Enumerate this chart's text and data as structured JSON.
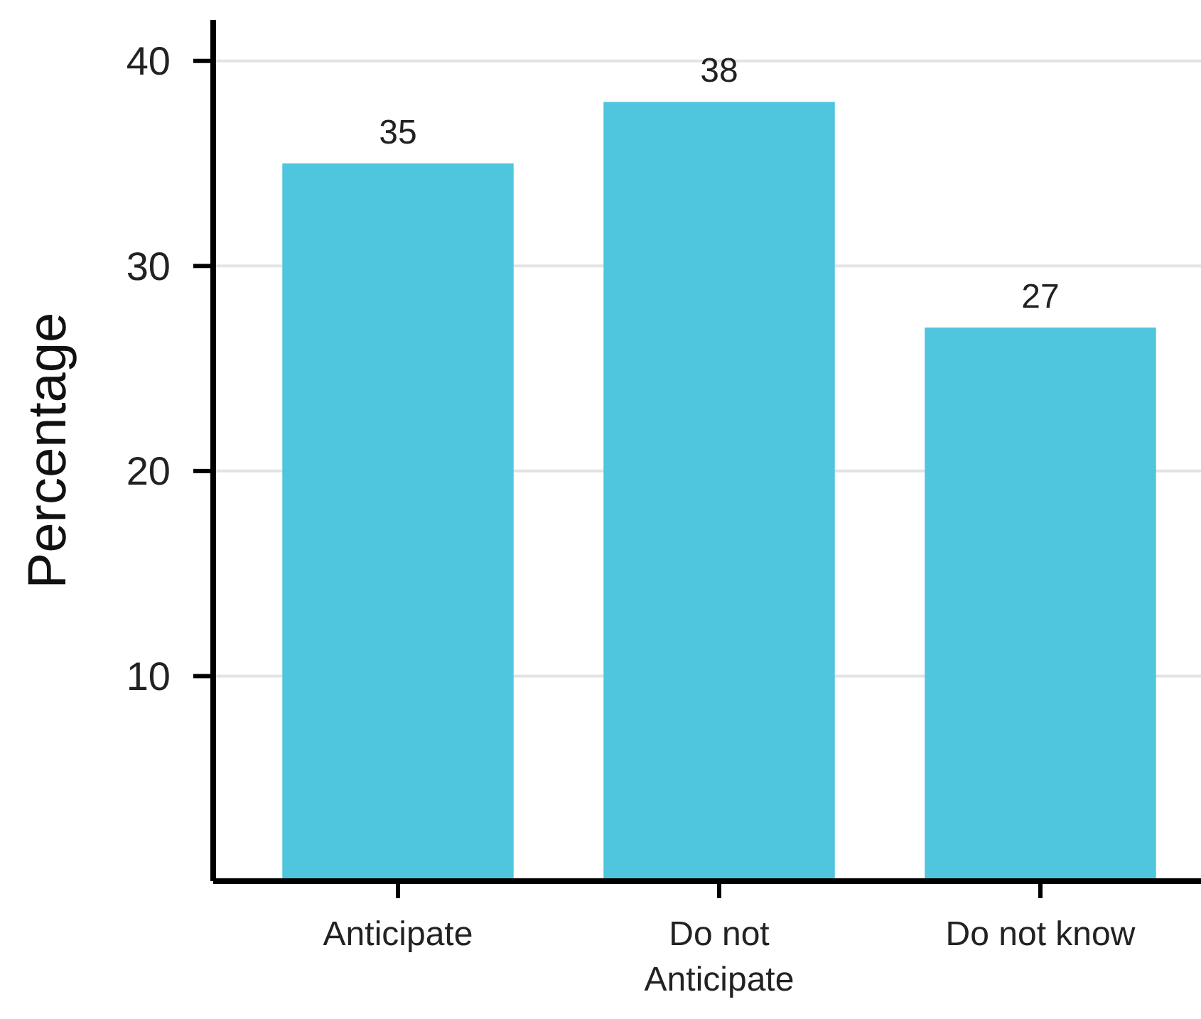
{
  "chart_data": {
    "type": "bar",
    "ylabel": "Percentage",
    "categories": [
      "Anticipate",
      "Do not Anticipate",
      "Do not know"
    ],
    "values": [
      35,
      38,
      27
    ],
    "color": "#4fc5de",
    "ylim": [
      0,
      42
    ],
    "yticks": [
      10,
      20,
      30,
      40
    ],
    "grid": "y",
    "data_labels": true
  }
}
